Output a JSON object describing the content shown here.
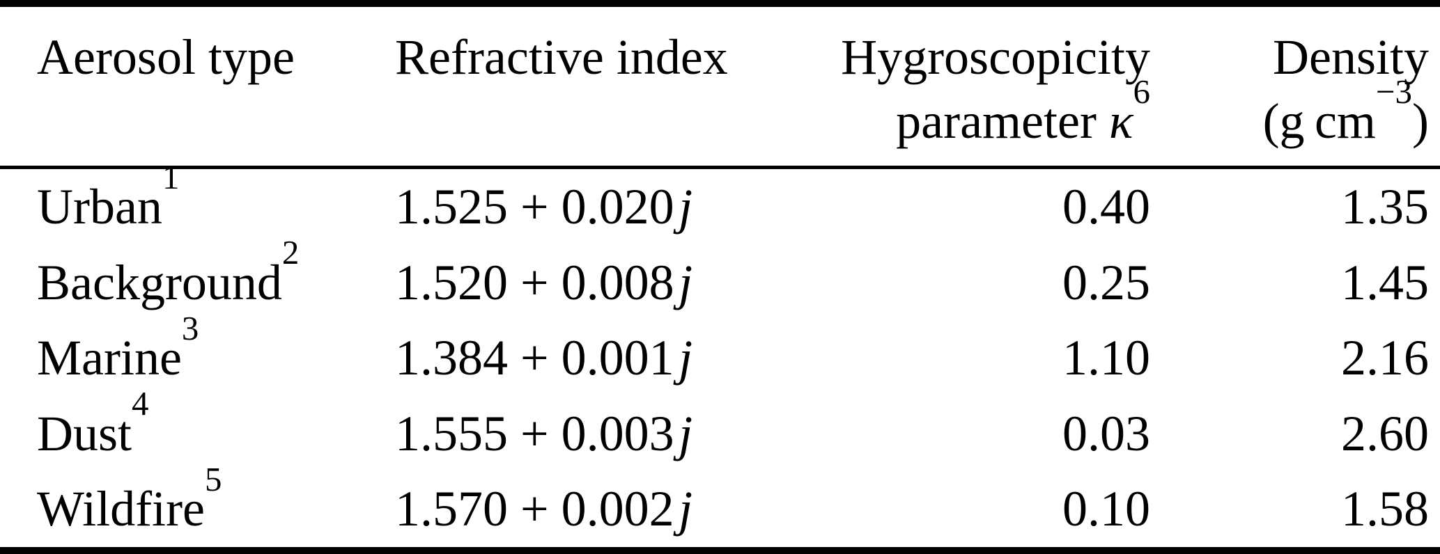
{
  "page": {
    "background": "#ffffff",
    "text_color": "#000000"
  },
  "table": {
    "header": {
      "col1": "Aerosol type",
      "col2": "Refractive index",
      "col3_line1": "Hygroscopicity",
      "col3_line2_prefix": "parameter ",
      "col3_symbol": "κ",
      "col3_footnote": "6",
      "col4_line1": "Density",
      "col4_unit_open": "(g cm",
      "col4_unit_exponent": "−3",
      "col4_unit_close": ")"
    },
    "imaginary_unit": "j",
    "rows": [
      {
        "type": "Urban",
        "footnote": "1",
        "refractive_index": "1.525 + 0.020",
        "kappa": "0.40",
        "density": "1.35"
      },
      {
        "type": "Background",
        "footnote": "2",
        "refractive_index": "1.520 + 0.008",
        "kappa": "0.25",
        "density": "1.45"
      },
      {
        "type": "Marine",
        "footnote": "3",
        "refractive_index": "1.384 + 0.001",
        "kappa": "1.10",
        "density": "2.16"
      },
      {
        "type": "Dust",
        "footnote": "4",
        "refractive_index": "1.555 + 0.003",
        "kappa": "0.03",
        "density": "2.60"
      },
      {
        "type": "Wildfire",
        "footnote": "5",
        "refractive_index": "1.570 + 0.002",
        "kappa": "0.10",
        "density": "1.58"
      }
    ]
  }
}
